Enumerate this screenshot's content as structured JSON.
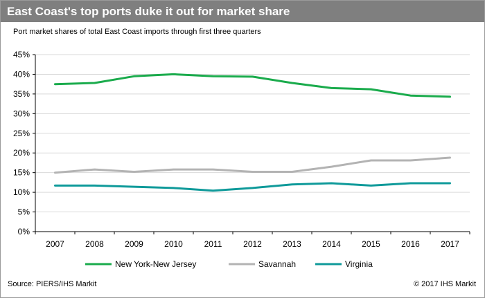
{
  "header": {
    "title": "East Coast's top ports duke it out for market share",
    "subtitle": "Port market shares of total East Coast imports through first three quarters"
  },
  "footer": {
    "source": "Source:  PIERS/IHS Markit",
    "copyright": "© 2017  IHS Markit"
  },
  "colors": {
    "title_bar": "#7f7f7f",
    "gridline": "#d9d9d9",
    "axis": "#000000"
  },
  "chart_data": {
    "type": "line",
    "title": "East Coast's top ports duke it out for market share",
    "subtitle": "Port market shares of total East Coast imports through first three quarters",
    "x": [
      "2007",
      "2008",
      "2009",
      "2010",
      "2011",
      "2012",
      "2013",
      "2014",
      "2015",
      "2016",
      "2017"
    ],
    "y_ticks": [
      "0%",
      "5%",
      "10%",
      "15%",
      "20%",
      "25%",
      "30%",
      "35%",
      "40%",
      "45%"
    ],
    "ylim": [
      0,
      45
    ],
    "y_unit": "%",
    "grid": true,
    "legend_position": "bottom",
    "series": [
      {
        "name": "New York-New Jersey",
        "color": "#1aab4c",
        "values": [
          37.5,
          37.8,
          39.5,
          40.0,
          39.5,
          39.4,
          37.8,
          36.5,
          36.2,
          34.6,
          34.3
        ]
      },
      {
        "name": "Savannah",
        "color": "#b3b3b3",
        "values": [
          15.0,
          15.8,
          15.2,
          15.8,
          15.8,
          15.2,
          15.2,
          16.5,
          18.1,
          18.1,
          18.8
        ]
      },
      {
        "name": "Virginia",
        "color": "#0f9a9a",
        "values": [
          11.7,
          11.7,
          11.4,
          11.1,
          10.4,
          11.1,
          12.0,
          12.3,
          11.7,
          12.3,
          12.3
        ]
      }
    ]
  }
}
